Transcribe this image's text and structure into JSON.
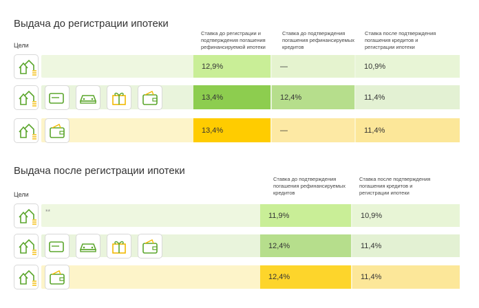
{
  "sections": [
    {
      "title": "Выдача до регистрации ипотеки",
      "goals_label": "Цели",
      "headers": [
        "Ставка до регистрации и подтверждения погашения рефинансируемой ипотеки",
        "Ставка до подтверждения погашения рефинансируемых кредитов",
        "Ставка после подтверждения погашения кредитов и регистрации ипотеки"
      ],
      "rows": [
        {
          "rates": [
            "12,9%",
            "—",
            "10,9%"
          ]
        },
        {
          "rates": [
            "13,4%",
            "12,4%",
            "11,4%"
          ]
        },
        {
          "rates": [
            "13,4%",
            "—",
            "11,4%"
          ]
        }
      ]
    },
    {
      "title": "Выдача после регистрации ипотеки",
      "goals_label": "Цели",
      "headers": [
        "Ставка до подтверждения погашения рефинансируемых кредитов",
        "Ставка после подтверждения погашения кредитов и регистрации ипотеки"
      ],
      "rows": [
        {
          "note": "**",
          "rates": [
            "11,9%",
            "10,9%"
          ]
        },
        {
          "rates": [
            "12,4%",
            "11,4%"
          ]
        },
        {
          "rates": [
            "12,4%",
            "11,4%"
          ]
        }
      ]
    }
  ]
}
